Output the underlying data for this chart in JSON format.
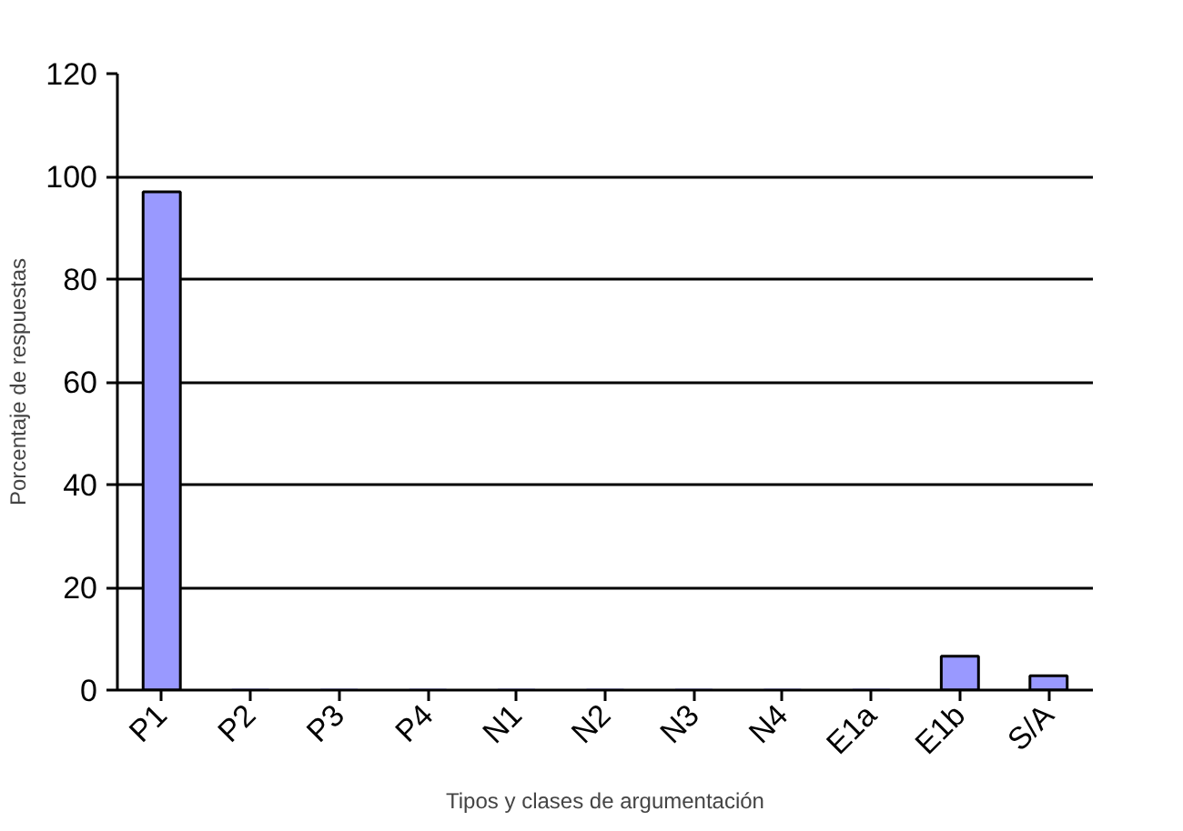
{
  "chart_data": {
    "type": "bar",
    "xlabel": "Tipos y clases de argumentación",
    "ylabel": "Porcentaje de respuestas",
    "categories": [
      "P1",
      "P2",
      "P3",
      "P4",
      "N1",
      "N2",
      "N3",
      "N4",
      "E1a",
      "E1b",
      "S/A"
    ],
    "values": [
      97,
      0,
      0,
      0,
      0,
      0,
      0,
      0,
      0,
      6.6,
      2.8
    ],
    "color": "#9999ff",
    "ylim": [
      0,
      120
    ],
    "yticks": [
      0,
      20,
      40,
      60,
      80,
      100,
      120
    ],
    "grid": "y"
  }
}
